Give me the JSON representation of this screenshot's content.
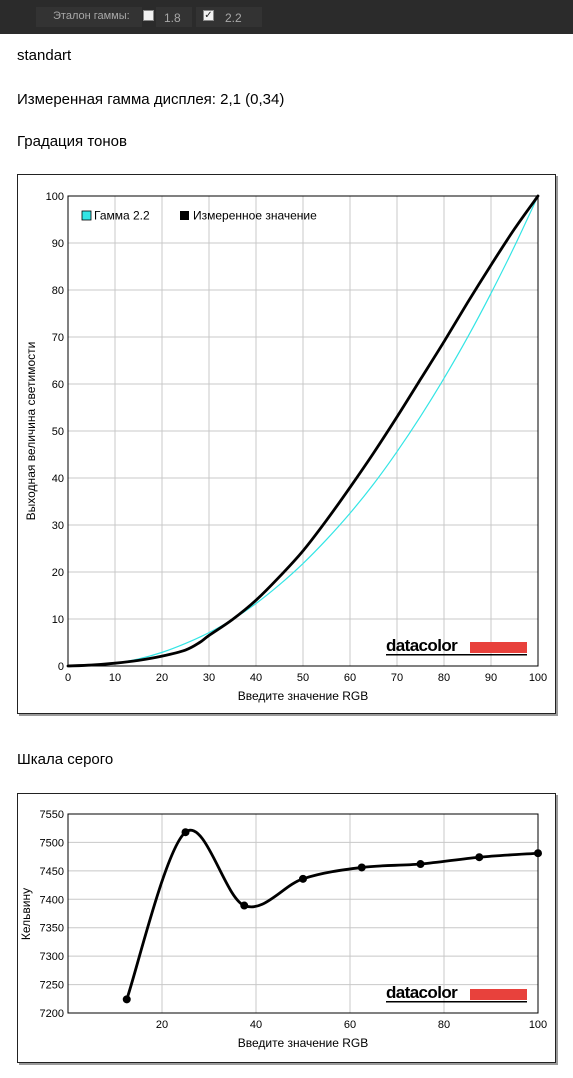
{
  "toolbar": {
    "label": "Эталон гаммы:",
    "options": [
      {
        "label": "1.8",
        "checked": false
      },
      {
        "label": "2.2",
        "checked": true
      }
    ]
  },
  "profile_name": "standart",
  "measured_gamma": "Измеренная гамма дисплея: 2,1 (0,34)",
  "tone_heading": "Градация тонов",
  "gray_heading": "Шкала серого",
  "brand": {
    "logo_text": "datacolor",
    "logo_bar_color": "#e8413c"
  },
  "chart_data": [
    {
      "type": "line",
      "title": "",
      "xlabel": "Введите значение RGB",
      "ylabel": "Выходная величина светимости",
      "xlim": [
        0,
        100
      ],
      "ylim": [
        0,
        100
      ],
      "xticks": [
        "0",
        "10",
        "20",
        "30",
        "40",
        "50",
        "60",
        "70",
        "80",
        "90",
        "100"
      ],
      "yticks": [
        "0",
        "10",
        "20",
        "30",
        "40",
        "50",
        "60",
        "70",
        "80",
        "90",
        "100"
      ],
      "grid": true,
      "legend_position": "top-left",
      "series": [
        {
          "name": "Гамма 2.2",
          "color": "#33e5e5",
          "x": [
            0,
            5,
            10,
            15,
            20,
            25,
            30,
            35,
            40,
            45,
            50,
            55,
            60,
            65,
            70,
            75,
            80,
            85,
            90,
            95,
            100
          ],
          "y": [
            0,
            0.1,
            0.6,
            1.5,
            2.9,
            4.8,
            7.1,
            9.9,
            13.3,
            17.3,
            21.8,
            26.9,
            32.5,
            38.7,
            45.6,
            53.1,
            61.2,
            69.9,
            79.3,
            89.3,
            100
          ]
        },
        {
          "name": "Измеренное значение",
          "color": "#000000",
          "x": [
            0,
            5,
            10,
            15,
            20,
            25,
            28,
            30,
            35,
            40,
            45,
            50,
            55,
            60,
            65,
            70,
            75,
            80,
            85,
            90,
            95,
            100
          ],
          "y": [
            0,
            0.2,
            0.6,
            1.2,
            2.1,
            3.4,
            5,
            6.5,
            9.9,
            14,
            19,
            24.5,
            31,
            38,
            45.3,
            53,
            61,
            69,
            77.3,
            85.3,
            93,
            100
          ]
        }
      ]
    },
    {
      "type": "line",
      "title": "",
      "xlabel": "Введите значение RGB",
      "ylabel": "Кельвину",
      "xlim": [
        0,
        100
      ],
      "ylim": [
        7200,
        7550
      ],
      "xticks": [
        "20",
        "40",
        "60",
        "80",
        "100"
      ],
      "yticks": [
        "7200",
        "7250",
        "7300",
        "7350",
        "7400",
        "7450",
        "7500",
        "7550"
      ],
      "grid": true,
      "series": [
        {
          "color": "#000000",
          "x": [
            12.5,
            25,
            37.5,
            50,
            62.5,
            75,
            87.5,
            100
          ],
          "y": [
            7224,
            7518,
            7389,
            7436,
            7456,
            7462,
            7474,
            7481
          ]
        }
      ]
    }
  ]
}
